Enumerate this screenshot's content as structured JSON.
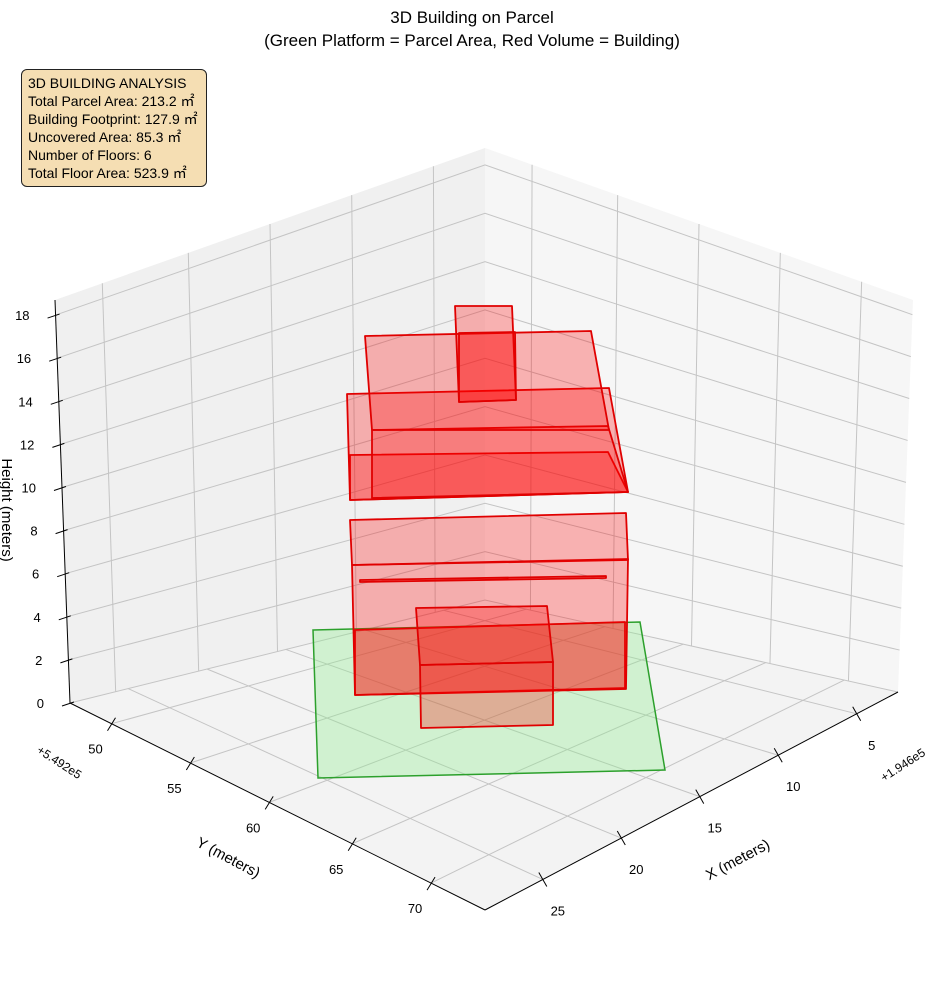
{
  "chart_data": {
    "type": "3d-polygons",
    "title": "3D Building on Parcel",
    "subtitle": "(Green Platform = Parcel Area, Red Volume = Building)",
    "xlabel": "X (meters)",
    "ylabel": "Y (meters)",
    "zlabel": "Height (meters)",
    "x_offset": "+1.946e5",
    "y_offset": "+5.492e5",
    "x_ticks": [
      "5",
      "10",
      "15",
      "20",
      "25"
    ],
    "y_ticks": [
      "50",
      "55",
      "60",
      "65",
      "70"
    ],
    "z_ticks": [
      "0",
      "2",
      "4",
      "6",
      "8",
      "10",
      "12",
      "14",
      "16",
      "18"
    ],
    "zlim": [
      0,
      18.7
    ],
    "grid": true,
    "series": [
      {
        "name": "Parcel Area",
        "color": "#2ca02c",
        "fill": "#90ee90"
      },
      {
        "name": "Building",
        "color": "#ff0000",
        "fill": "#ff0000"
      }
    ]
  },
  "info_box": {
    "lines": [
      "3D BUILDING ANALYSIS",
      "Total Parcel Area: 213.2 ㎡",
      "Building Footprint: 127.9 ㎡",
      "Uncovered Area: 85.3 ㎡",
      "Number of Floors: 6",
      "Total Floor Area: 523.9 ㎡"
    ]
  }
}
